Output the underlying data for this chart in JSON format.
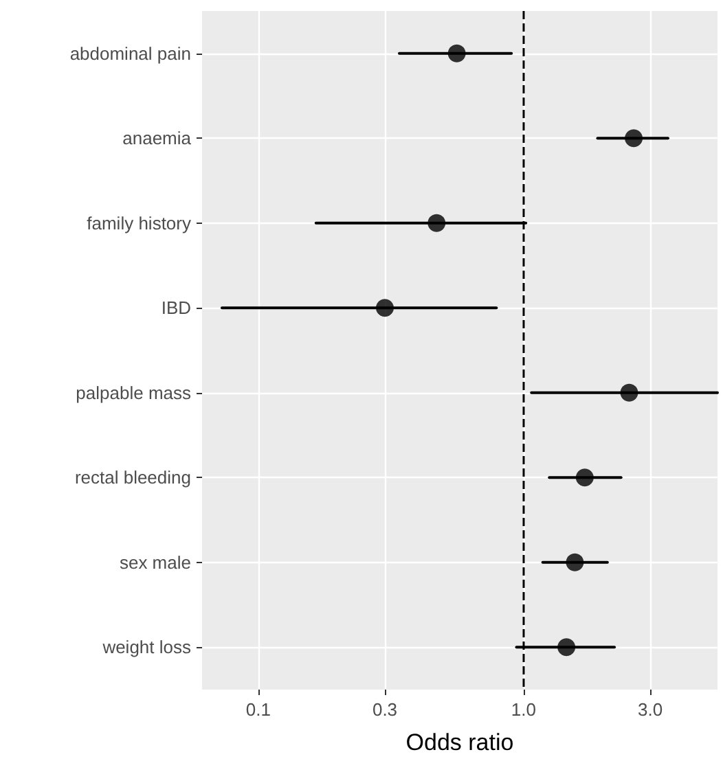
{
  "chart_data": {
    "type": "scatter",
    "xlabel": "Odds ratio",
    "categories": [
      "abdominal pain",
      "anaemia",
      "family history",
      "IBD",
      "palpable mass",
      "rectal bleeding",
      "sex male",
      "weight loss"
    ],
    "values": [
      0.56,
      2.6,
      0.47,
      0.3,
      2.5,
      1.7,
      1.56,
      1.45
    ],
    "errors": [
      [
        0.34,
        0.9
      ],
      [
        1.9,
        3.5
      ],
      [
        0.165,
        1.02
      ],
      [
        0.073,
        0.79
      ],
      [
        1.07,
        5.38
      ],
      [
        1.25,
        2.33
      ],
      [
        1.18,
        2.07
      ],
      [
        0.94,
        2.2
      ]
    ],
    "orientation": "horizontal",
    "color": "#000000",
    "marker": "circle",
    "log": "x",
    "xlim": [
      0.0614,
      5.38
    ],
    "xticks": [
      0.1,
      0.3,
      {
        "value": 1,
        "label": "1.0"
      },
      {
        "value": 3,
        "label": "3.0"
      }
    ],
    "ref_lines": [
      {
        "axis": "x",
        "value": 1,
        "line_style": "dashed",
        "color": "#000000"
      }
    ],
    "grid": true
  }
}
